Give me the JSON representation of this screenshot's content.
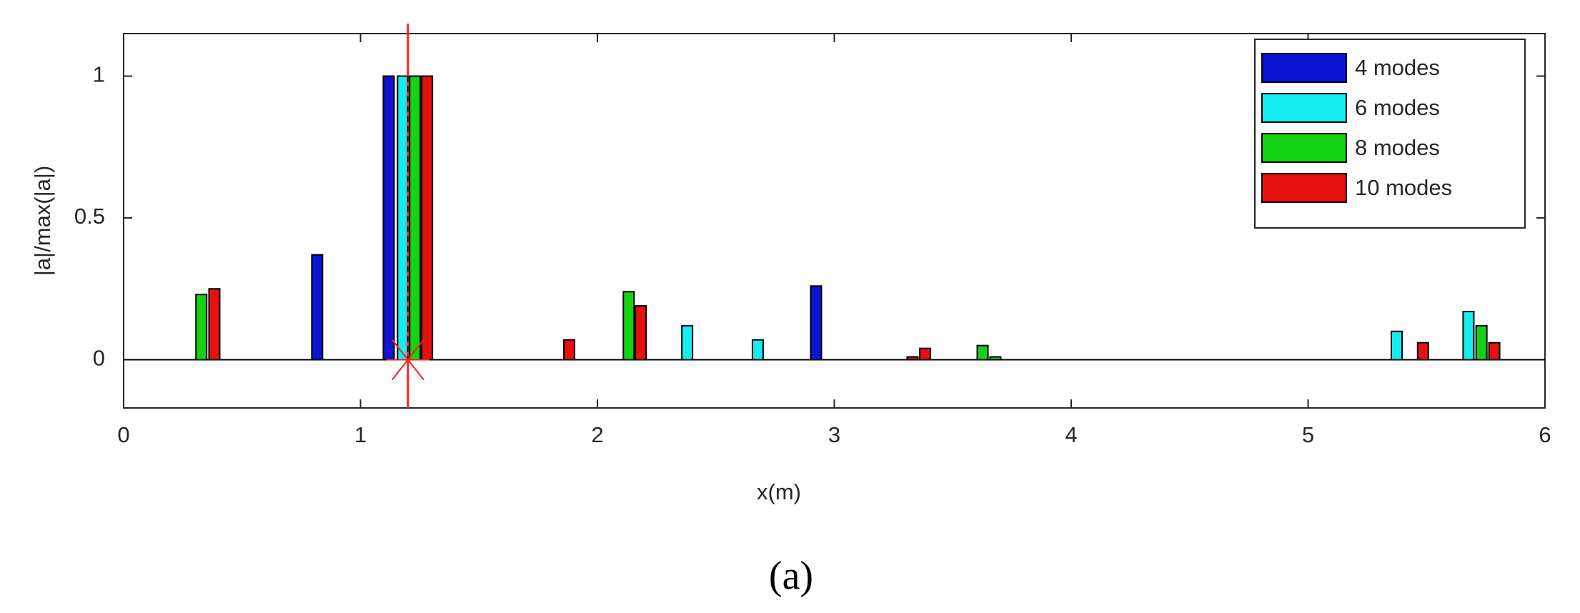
{
  "chart_data": {
    "type": "bar",
    "xlabel": "x(m)",
    "ylabel": "|a|/max(|a|)",
    "caption": "(a)",
    "xlim": [
      0,
      6
    ],
    "xticks": [
      0,
      1,
      2,
      3,
      4,
      5,
      6
    ],
    "ylim": [
      -0.17,
      1.15
    ],
    "yticks": [
      0,
      0.5,
      1
    ],
    "legend": "upper right",
    "marker_x": 1.2,
    "marker_color": "#ff2020",
    "series": [
      {
        "name": "4 modes",
        "color": "#0a14d2",
        "x": [
          0.817,
          1.119,
          2.923
        ],
        "values": [
          0.37,
          1.0,
          0.26
        ]
      },
      {
        "name": "6 modes",
        "color": "#14ecf0",
        "x": [
          1.179,
          2.379,
          2.677,
          5.374,
          5.677
        ],
        "values": [
          1.0,
          0.12,
          0.07,
          0.1,
          0.17
        ]
      },
      {
        "name": "8 modes",
        "color": "#14d214",
        "x": [
          0.328,
          1.23,
          2.132,
          3.626,
          3.68,
          5.732
        ],
        "values": [
          0.23,
          1.0,
          0.24,
          0.05,
          0.01,
          0.12
        ]
      },
      {
        "name": "10 modes",
        "color": "#e61010",
        "x": [
          0.383,
          1.281,
          1.881,
          2.183,
          3.33,
          3.383,
          5.485,
          5.786
        ],
        "values": [
          0.25,
          1.0,
          0.07,
          0.19,
          0.01,
          0.04,
          0.06,
          0.06
        ]
      }
    ]
  }
}
